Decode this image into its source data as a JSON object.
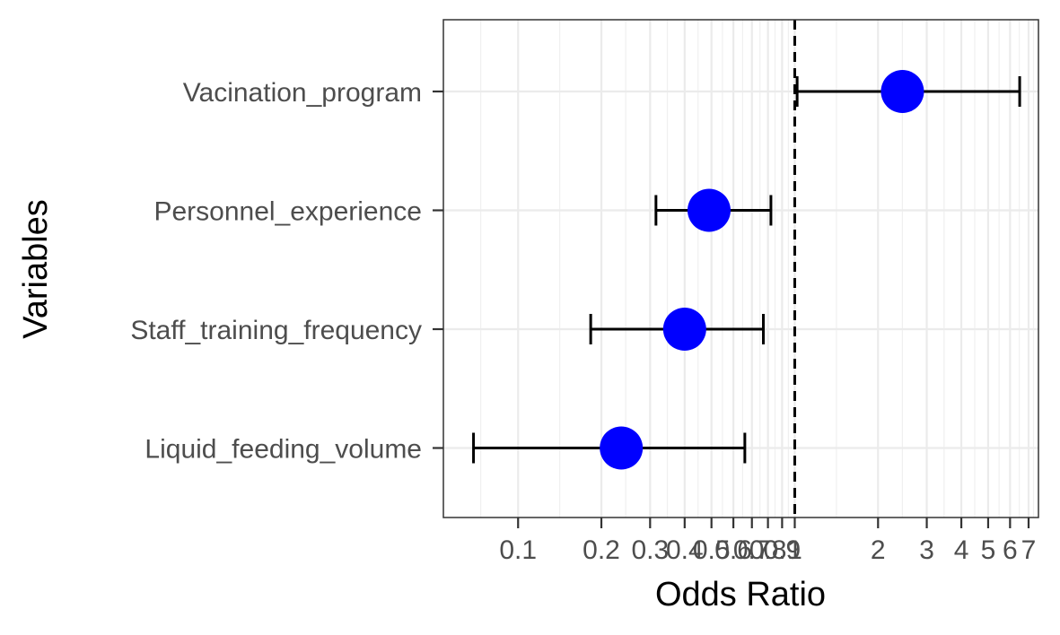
{
  "chart_data": {
    "type": "scatter",
    "subtype": "forest-plot",
    "xlabel": "Odds Ratio",
    "ylabel": "Variables",
    "x_scale": "log10",
    "xlim": [
      0.0537,
      7.6
    ],
    "reference_line": {
      "x": 1,
      "style": "dashed",
      "color": "#000000"
    },
    "x_ticks": [
      {
        "value": 0.1,
        "label": "0.1"
      },
      {
        "value": 0.2,
        "label": "0.2"
      },
      {
        "value": 0.3,
        "label": "0.3"
      },
      {
        "value": 0.4,
        "label": "0.4"
      },
      {
        "value": 0.5,
        "label": "0.5"
      },
      {
        "value": 0.6,
        "label": "0.6"
      },
      {
        "value": 0.7,
        "label": "0.7"
      },
      {
        "value": 0.8,
        "label": "0.8"
      },
      {
        "value": 0.9,
        "label": "0.9"
      },
      {
        "value": 1,
        "label": "1"
      },
      {
        "value": 2,
        "label": "2"
      },
      {
        "value": 3,
        "label": "3"
      },
      {
        "value": 4,
        "label": "4"
      },
      {
        "value": 5,
        "label": "5"
      },
      {
        "value": 6,
        "label": "6"
      },
      {
        "value": 7,
        "label": "7"
      }
    ],
    "grid": true,
    "point_color": "#0000ff",
    "categories": [
      "Vacination_program",
      "Personnel_experience",
      "Staff_training_frequency",
      "Liquid_feeding_volume"
    ],
    "points": [
      {
        "label": "Vacination_program",
        "or": 2.45,
        "lower": 1.02,
        "upper": 6.5
      },
      {
        "label": "Personnel_experience",
        "or": 0.49,
        "lower": 0.315,
        "upper": 0.82
      },
      {
        "label": "Staff_training_frequency",
        "or": 0.4,
        "lower": 0.183,
        "upper": 0.77
      },
      {
        "label": "Liquid_feeding_volume",
        "or": 0.236,
        "lower": 0.069,
        "upper": 0.66
      }
    ]
  }
}
